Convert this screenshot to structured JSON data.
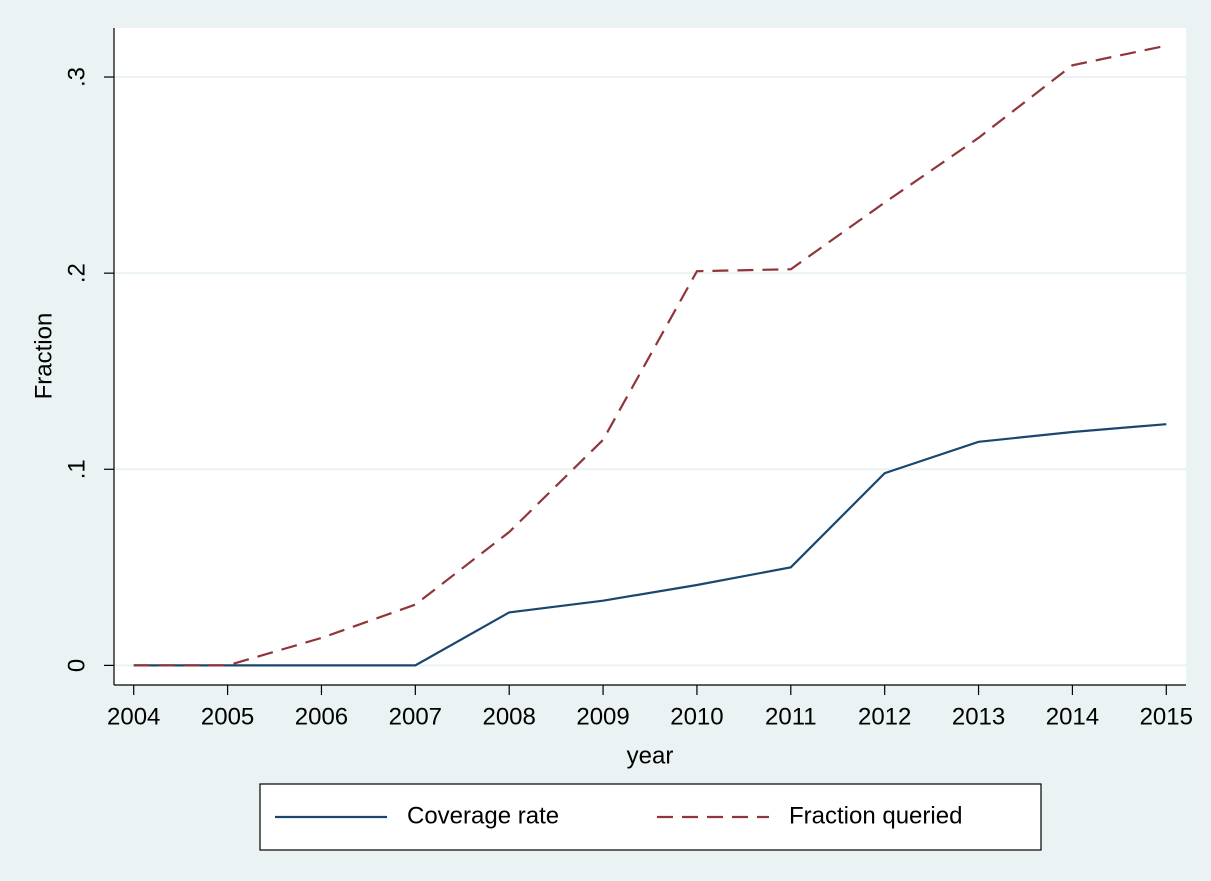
{
  "chart_data": {
    "type": "line",
    "x": [
      2004,
      2005,
      2006,
      2007,
      2008,
      2009,
      2010,
      2011,
      2012,
      2013,
      2014,
      2015
    ],
    "series": [
      {
        "name": "Coverage rate",
        "color": "#1a476f",
        "dashed": false,
        "values": [
          0,
          0,
          0,
          0,
          0.027,
          0.033,
          0.041,
          0.05,
          0.098,
          0.114,
          0.119,
          0.123
        ]
      },
      {
        "name": "Fraction queried",
        "color": "#90353b",
        "dashed": true,
        "values": [
          0,
          0,
          0.014,
          0.031,
          0.068,
          0.115,
          0.201,
          0.202,
          0.236,
          0.269,
          0.306,
          0.316
        ]
      }
    ],
    "xlabel": "year",
    "ylabel": "Fraction",
    "xlim": [
      2003.79,
      2015.21
    ],
    "xticks": [
      2004,
      2005,
      2006,
      2007,
      2008,
      2009,
      2010,
      2011,
      2012,
      2013,
      2014,
      2015
    ],
    "ylim": [
      -0.01,
      0.325
    ],
    "yticks": [
      0,
      {
        "value": 0.1,
        "label": ".1"
      },
      {
        "value": 0.2,
        "label": ".2"
      },
      {
        "value": 0.3,
        "label": ".3"
      }
    ],
    "grid": true,
    "legend": "bottom"
  }
}
